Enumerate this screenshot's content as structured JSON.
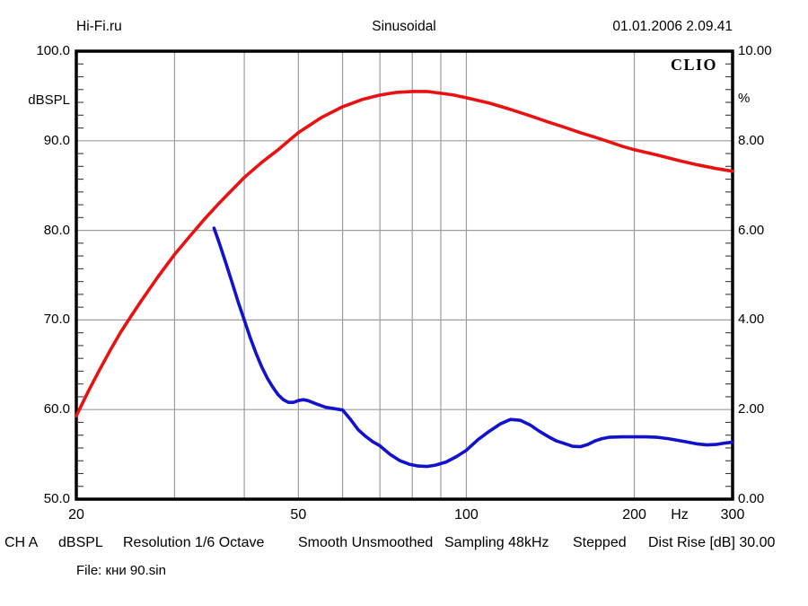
{
  "header": {
    "left": "Hi-Fi.ru",
    "center": "Sinusoidal",
    "right": "01.01.2006 2.09.41"
  },
  "watermark": "CLIO",
  "status_bar": {
    "items": [
      "CH A",
      "dBSPL",
      "Resolution 1/6 Octave",
      "Smooth Unsmoothed",
      "Sampling 48kHz",
      "Stepped",
      "Dist Rise [dB] 30.00"
    ]
  },
  "file_line": "File: кни 90.sin",
  "colors": {
    "response": "#e81212",
    "distortion": "#1212cd",
    "grid": "#9c9c9c",
    "border": "#000000"
  },
  "chart_data": {
    "type": "line",
    "title": "Sinusoidal",
    "x_axis": {
      "scale": "log",
      "min": 20,
      "max": 300,
      "unit": "Hz",
      "tick_values": [
        20,
        50,
        100,
        200,
        300
      ],
      "tick_labels": [
        "20",
        "50",
        "100",
        "200",
        "300"
      ],
      "gridline_values": [
        30,
        40,
        50,
        60,
        70,
        80,
        90,
        100,
        200
      ]
    },
    "y_left": {
      "label": "dBSPL",
      "min": 50,
      "max": 100,
      "tick_values": [
        100,
        90,
        80,
        70,
        60,
        50
      ],
      "tick_labels": [
        "100.0",
        "90.0",
        "80.0",
        "70.0",
        "60.0",
        "50.0"
      ],
      "gridline_values": [
        90,
        80,
        70,
        60
      ]
    },
    "y_right": {
      "label": "%",
      "min": 0,
      "max": 10,
      "tick_values": [
        10,
        8,
        6,
        4,
        2,
        0
      ],
      "tick_labels": [
        "10.00",
        "8.00",
        "6.00",
        "4.00",
        "2.00",
        "0.00"
      ]
    },
    "grid": true,
    "legend": "none",
    "series": [
      {
        "name": "frequency-response-dbspl",
        "axis": "left",
        "color": "#e81212",
        "points": [
          [
            20,
            59.3
          ],
          [
            21,
            62
          ],
          [
            22,
            64.4
          ],
          [
            23,
            66.6
          ],
          [
            24,
            68.6
          ],
          [
            25,
            70.3
          ],
          [
            26,
            71.9
          ],
          [
            28,
            74.8
          ],
          [
            30,
            77.3
          ],
          [
            32,
            79.4
          ],
          [
            34,
            81.3
          ],
          [
            36,
            83
          ],
          [
            38,
            84.5
          ],
          [
            40,
            85.9
          ],
          [
            43,
            87.6
          ],
          [
            46,
            89
          ],
          [
            50,
            90.9
          ],
          [
            55,
            92.6
          ],
          [
            60,
            93.8
          ],
          [
            65,
            94.6
          ],
          [
            70,
            95.1
          ],
          [
            75,
            95.4
          ],
          [
            80,
            95.5
          ],
          [
            85,
            95.5
          ],
          [
            90,
            95.3
          ],
          [
            95,
            95.1
          ],
          [
            100,
            94.8
          ],
          [
            110,
            94.2
          ],
          [
            120,
            93.5
          ],
          [
            130,
            92.8
          ],
          [
            140,
            92.1
          ],
          [
            150,
            91.5
          ],
          [
            160,
            90.9
          ],
          [
            170,
            90.4
          ],
          [
            180,
            89.9
          ],
          [
            190,
            89.4
          ],
          [
            200,
            89
          ],
          [
            220,
            88.4
          ],
          [
            240,
            87.8
          ],
          [
            260,
            87.3
          ],
          [
            280,
            86.9
          ],
          [
            300,
            86.6
          ]
        ]
      },
      {
        "name": "distortion-percent",
        "axis": "right",
        "color": "#1212cd",
        "points": [
          [
            35.3,
            6.05
          ],
          [
            36,
            5.75
          ],
          [
            37,
            5.3
          ],
          [
            38,
            4.85
          ],
          [
            39,
            4.4
          ],
          [
            40,
            4
          ],
          [
            41,
            3.6
          ],
          [
            42,
            3.25
          ],
          [
            43,
            2.95
          ],
          [
            44,
            2.7
          ],
          [
            45,
            2.5
          ],
          [
            46,
            2.33
          ],
          [
            47,
            2.22
          ],
          [
            48,
            2.16
          ],
          [
            49,
            2.16
          ],
          [
            50,
            2.2
          ],
          [
            51,
            2.22
          ],
          [
            52,
            2.2
          ],
          [
            54,
            2.12
          ],
          [
            56,
            2.05
          ],
          [
            58,
            2.02
          ],
          [
            60,
            1.99
          ],
          [
            62,
            1.78
          ],
          [
            64,
            1.55
          ],
          [
            66,
            1.4
          ],
          [
            68,
            1.28
          ],
          [
            70,
            1.19
          ],
          [
            73,
            1
          ],
          [
            76,
            0.86
          ],
          [
            79,
            0.78
          ],
          [
            82,
            0.74
          ],
          [
            85,
            0.73
          ],
          [
            88,
            0.76
          ],
          [
            92,
            0.83
          ],
          [
            96,
            0.95
          ],
          [
            100,
            1.09
          ],
          [
            105,
            1.33
          ],
          [
            110,
            1.52
          ],
          [
            115,
            1.68
          ],
          [
            120,
            1.78
          ],
          [
            125,
            1.76
          ],
          [
            130,
            1.66
          ],
          [
            135,
            1.52
          ],
          [
            140,
            1.4
          ],
          [
            145,
            1.3
          ],
          [
            150,
            1.24
          ],
          [
            155,
            1.18
          ],
          [
            160,
            1.17
          ],
          [
            165,
            1.22
          ],
          [
            170,
            1.3
          ],
          [
            175,
            1.35
          ],
          [
            180,
            1.38
          ],
          [
            190,
            1.39
          ],
          [
            200,
            1.39
          ],
          [
            210,
            1.39
          ],
          [
            220,
            1.38
          ],
          [
            230,
            1.35
          ],
          [
            240,
            1.31
          ],
          [
            250,
            1.27
          ],
          [
            260,
            1.23
          ],
          [
            270,
            1.21
          ],
          [
            280,
            1.22
          ],
          [
            290,
            1.25
          ],
          [
            300,
            1.27
          ]
        ]
      }
    ]
  }
}
